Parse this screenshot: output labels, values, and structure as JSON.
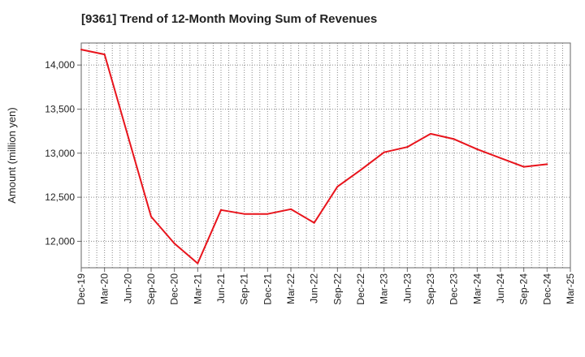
{
  "chart_data": {
    "type": "line",
    "title": "[9361]  Trend of 12-Month Moving Sum of Revenues",
    "xlabel": "",
    "ylabel": "Amount (million yen)",
    "x_tick_labels": [
      "Dec-19",
      "Mar-20",
      "Jun-20",
      "Sep-20",
      "Dec-20",
      "Mar-21",
      "Jun-21",
      "Sep-21",
      "Dec-21",
      "Mar-22",
      "Jun-22",
      "Sep-22",
      "Dec-22",
      "Mar-23",
      "Jun-23",
      "Sep-23",
      "Dec-23",
      "Mar-24",
      "Jun-24",
      "Sep-24",
      "Dec-24",
      "Mar-25"
    ],
    "y_ticks": [
      12000,
      12500,
      13000,
      13500,
      14000
    ],
    "y_tick_labels": [
      "12,000",
      "12,500",
      "13,000",
      "13,500",
      "14,000"
    ],
    "ylim": [
      11700,
      14250
    ],
    "grid": true,
    "series": [
      {
        "color": "#e8141c",
        "x": [
          "Dec-19",
          "Mar-20",
          "Jun-20",
          "Sep-20",
          "Dec-20",
          "Mar-21",
          "Jun-21",
          "Sep-21",
          "Dec-21",
          "Mar-22",
          "Jun-22",
          "Sep-22",
          "Dec-22",
          "Mar-23",
          "Jun-23",
          "Sep-23",
          "Dec-23",
          "Mar-24",
          "Jun-24",
          "Sep-24",
          "Dec-24"
        ],
        "values": [
          14175,
          14120,
          13200,
          12280,
          11975,
          11750,
          12355,
          12310,
          12310,
          12365,
          12210,
          12620,
          12810,
          13010,
          13070,
          13220,
          13160,
          13045,
          12945,
          12845,
          12875
        ]
      }
    ]
  }
}
